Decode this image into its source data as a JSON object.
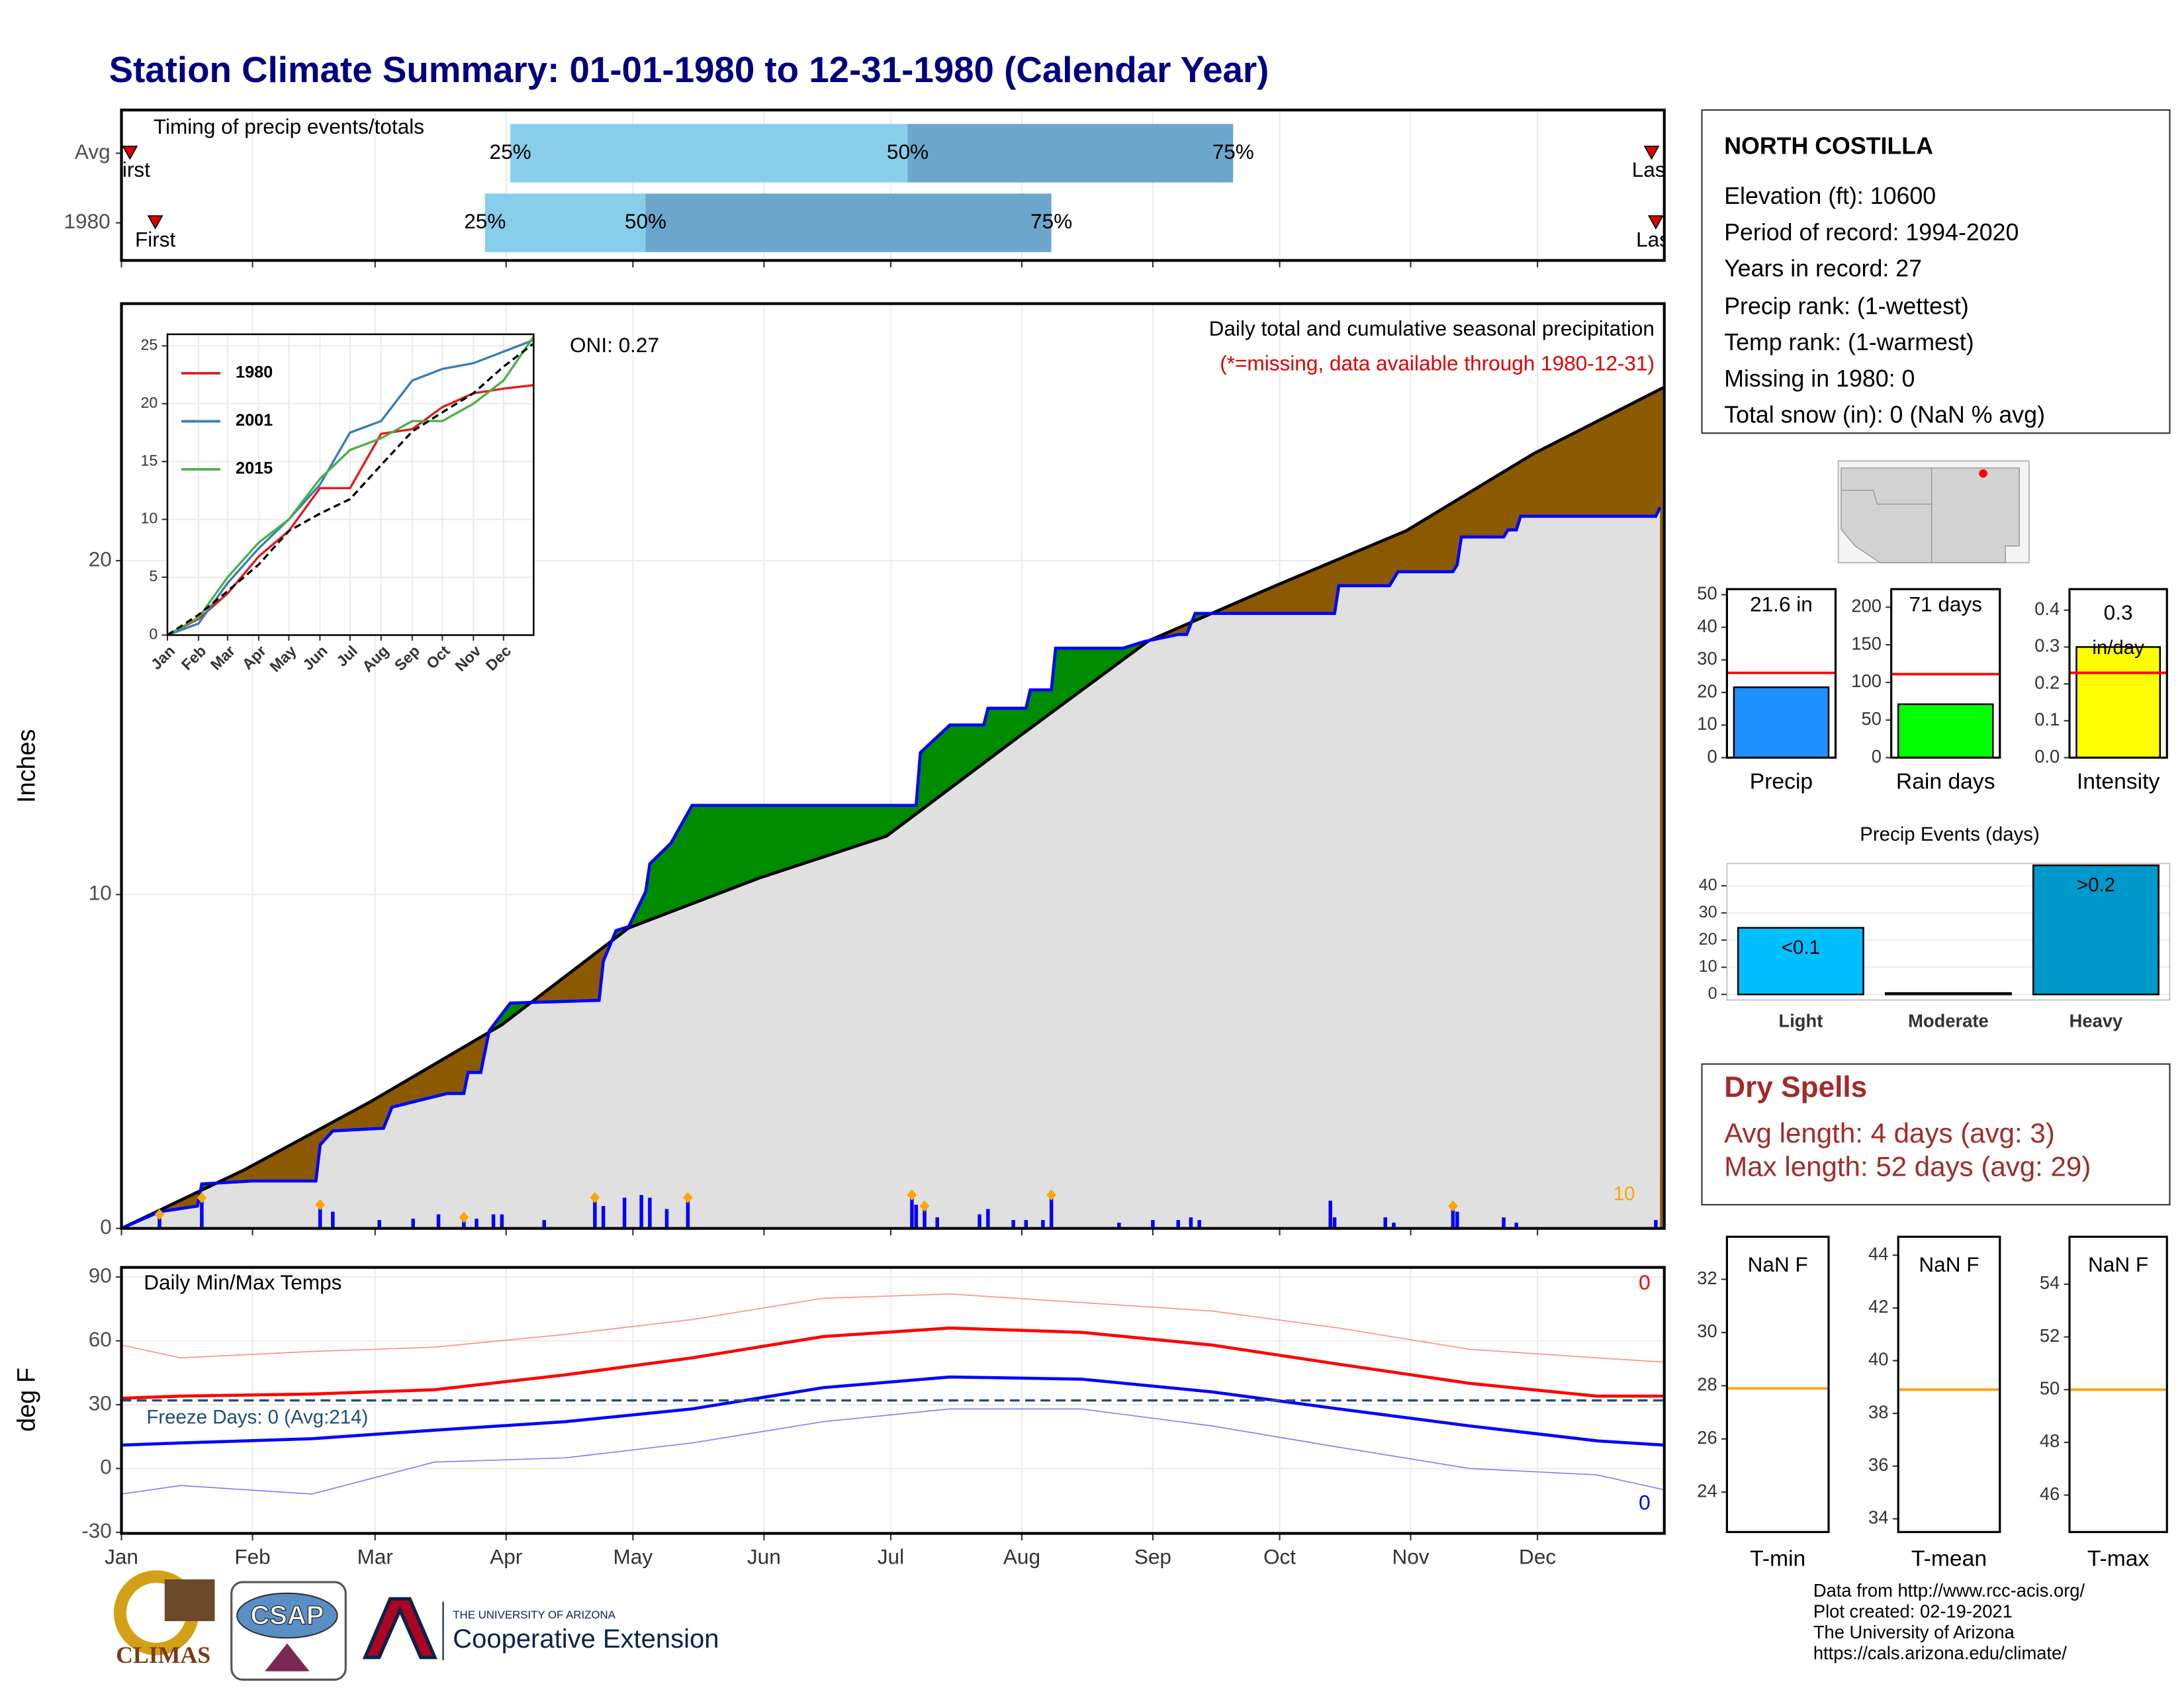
{
  "header": {
    "title": "Station Climate Summary: 01-01-1980 to 12-31-1980 (Calendar Year)"
  },
  "chart_data": [
    {
      "type": "timing",
      "title": "Timing of precip events/totals",
      "categories": [
        "Avg",
        "1980"
      ],
      "first": [
        3,
        9
      ],
      "q25": [
        93,
        87
      ],
      "q50": [
        187,
        125
      ],
      "q75": [
        264,
        221
      ],
      "last": [
        363,
        364
      ],
      "labels": {
        "first": "First",
        "last": "Last",
        "q25": "25%",
        "q50": "50%",
        "q75": "75%"
      },
      "colors": {
        "q25": "#87ceeb",
        "q50": "#6ca6cd",
        "marker": "#e00000"
      },
      "xlim": [
        1,
        366
      ],
      "xticks": [
        1,
        32,
        61,
        92,
        122,
        153,
        183,
        214,
        245,
        275,
        306,
        336
      ],
      "grid": true
    },
    {
      "type": "precip",
      "title": "Daily total and cumulative seasonal precipitation",
      "subtitle": "(*=missing, data available through 1980-12-31)",
      "annotation": "ONI: 0.27",
      "count_label": "10",
      "ylabel": "Inches",
      "xlim": [
        1,
        366
      ],
      "xticks": [
        1,
        32,
        61,
        92,
        122,
        153,
        183,
        214,
        245,
        275,
        306,
        336
      ],
      "ylim": [
        0,
        27.7
      ],
      "yticks": [
        0,
        10,
        20
      ],
      "grid": true,
      "series": [
        {
          "color": "#000000",
          "x": [
            1,
            30,
            60,
            91,
            121,
            152,
            182,
            213,
            244,
            274,
            305,
            335,
            366
          ],
          "values": [
            0,
            1.75,
            3.8,
            6.1,
            9.0,
            10.5,
            11.75,
            14.7,
            17.6,
            19.25,
            20.9,
            23.2,
            25.2
          ]
        },
        {
          "color": "#0000ff",
          "x": [
            1,
            10,
            19,
            20,
            32,
            47,
            48,
            51,
            63,
            65,
            78,
            82,
            83,
            86,
            88,
            93,
            114,
            115,
            118,
            121,
            125,
            126,
            131,
            136,
            189,
            190,
            197,
            205,
            206,
            215,
            216,
            221,
            222,
            238,
            243,
            251,
            253,
            255,
            288,
            289,
            301,
            303,
            316,
            317,
            318,
            328,
            329,
            331,
            332,
            364,
            365
          ],
          "values": [
            0,
            0.5,
            0.67,
            1.33,
            1.42,
            1.42,
            2.5,
            2.92,
            3.0,
            3.63,
            4.04,
            4.04,
            4.67,
            4.67,
            5.92,
            6.75,
            6.83,
            8.0,
            8.92,
            9.04,
            10.08,
            10.92,
            11.54,
            12.67,
            12.67,
            14.25,
            15.08,
            15.08,
            15.58,
            15.58,
            16.13,
            16.13,
            17.38,
            17.38,
            17.58,
            17.79,
            17.79,
            18.42,
            18.42,
            19.25,
            19.25,
            19.67,
            19.67,
            19.88,
            20.71,
            20.71,
            20.92,
            20.92,
            21.33,
            21.33,
            21.6
          ]
        }
      ],
      "fill_colors": {
        "deficit": "#8b5a00",
        "surplus": "#008b00",
        "base": "#e0e0e0"
      },
      "daily": {
        "color": "#0000ff",
        "flag_color": "#ffa500",
        "x": [
          10,
          20,
          48,
          51,
          62,
          70,
          76,
          82,
          85,
          89,
          91,
          101,
          113,
          115,
          120,
          124,
          126,
          130,
          135,
          188,
          189,
          191,
          194,
          204,
          206,
          212,
          215,
          219,
          221,
          237,
          245,
          251,
          254,
          256,
          287,
          288,
          300,
          302,
          316,
          317,
          328,
          331,
          364
        ],
        "values": [
          0.42,
          0.92,
          0.71,
          0.5,
          0.25,
          0.29,
          0.42,
          0.33,
          0.29,
          0.42,
          0.42,
          0.25,
          0.92,
          0.67,
          0.92,
          1.0,
          0.92,
          0.58,
          0.92,
          1.0,
          0.71,
          0.67,
          0.33,
          0.42,
          0.58,
          0.25,
          0.25,
          0.25,
          1.0,
          0.17,
          0.25,
          0.25,
          0.33,
          0.25,
          0.83,
          0.33,
          0.33,
          0.17,
          0.67,
          0.5,
          0.33,
          0.17,
          0.25
        ],
        "flagged": [
          true,
          true,
          true,
          false,
          false,
          false,
          false,
          true,
          false,
          false,
          false,
          false,
          true,
          false,
          false,
          false,
          false,
          false,
          true,
          true,
          false,
          true,
          false,
          false,
          false,
          false,
          false,
          false,
          true,
          false,
          false,
          false,
          false,
          false,
          false,
          false,
          false,
          false,
          true,
          false,
          false,
          false,
          false
        ]
      }
    },
    {
      "type": "line",
      "xlim": [
        1,
        366
      ],
      "xticks": [
        {
          "value": 1,
          "label": "Jan"
        },
        {
          "value": 32,
          "label": "Feb"
        },
        {
          "value": 61,
          "label": "Mar"
        },
        {
          "value": 92,
          "label": "Apr"
        },
        {
          "value": 122,
          "label": "May"
        },
        {
          "value": 153,
          "label": "Jun"
        },
        {
          "value": 183,
          "label": "Jul"
        },
        {
          "value": 214,
          "label": "Aug"
        },
        {
          "value": 245,
          "label": "Sep"
        },
        {
          "value": 275,
          "label": "Oct"
        },
        {
          "value": 306,
          "label": "Nov"
        },
        {
          "value": 336,
          "label": "Dec"
        }
      ],
      "ylim": [
        0,
        26
      ],
      "yticks": [
        0,
        5,
        10,
        15,
        20,
        25
      ],
      "grid": true,
      "x": [
        1,
        32,
        61,
        92,
        122,
        153,
        183,
        214,
        245,
        275,
        306,
        336,
        366
      ],
      "series": [
        {
          "name": "1980",
          "color": "#e41a1c",
          "values": [
            0,
            1.4,
            3.6,
            6.8,
            9.0,
            12.7,
            12.7,
            17.4,
            17.8,
            19.7,
            20.9,
            21.3,
            21.6
          ]
        },
        {
          "name": "2001",
          "color": "#377eb8",
          "values": [
            0,
            1.0,
            4.5,
            7.5,
            10,
            13,
            17.5,
            18.5,
            22,
            23,
            23.5,
            24.5,
            25.5
          ]
        },
        {
          "name": "2015",
          "color": "#4daf4a",
          "values": [
            0,
            1.5,
            5,
            8,
            10,
            13.5,
            16,
            17,
            18.5,
            18.5,
            20,
            22,
            25.8
          ]
        },
        {
          "color": "#000000",
          "dash": true,
          "values": [
            0,
            1.75,
            3.8,
            6.1,
            9.0,
            10.5,
            11.75,
            14.7,
            17.6,
            19.25,
            20.9,
            23.2,
            25.2
          ]
        }
      ]
    },
    {
      "type": "temps",
      "title": "Daily Min/Max Temps",
      "ylabel": "deg F",
      "xlim": [
        1,
        366
      ],
      "xticks": [
        {
          "value": 1,
          "label": "Jan"
        },
        {
          "value": 32,
          "label": "Feb"
        },
        {
          "value": 61,
          "label": "Mar"
        },
        {
          "value": 92,
          "label": "Apr"
        },
        {
          "value": 122,
          "label": "May"
        },
        {
          "value": 153,
          "label": "Jun"
        },
        {
          "value": 183,
          "label": "Jul"
        },
        {
          "value": 214,
          "label": "Aug"
        },
        {
          "value": 245,
          "label": "Sep"
        },
        {
          "value": 275,
          "label": "Oct"
        },
        {
          "value": 306,
          "label": "Nov"
        },
        {
          "value": 336,
          "label": "Dec"
        }
      ],
      "ylim": [
        -30.5,
        94.5
      ],
      "yticks": [
        -30,
        0,
        30,
        60,
        90
      ],
      "grid": true,
      "x": [
        1,
        15,
        46,
        75,
        106,
        136,
        167,
        197,
        228,
        259,
        289,
        320,
        350,
        366
      ],
      "series": [
        {
          "color": "#ff9090",
          "width": 0.8,
          "values": [
            58,
            52,
            55,
            57,
            63,
            70,
            80,
            82,
            78,
            74,
            66,
            56,
            52,
            50
          ]
        },
        {
          "color": "#ff0000",
          "width": 2.2,
          "values": [
            33,
            34,
            35,
            37,
            44,
            52,
            62,
            66,
            64,
            58,
            49,
            40,
            34,
            34
          ]
        },
        {
          "color": "#0000ff",
          "width": 2.2,
          "values": [
            11,
            12,
            14,
            18,
            22,
            28,
            38,
            43,
            42,
            36,
            28,
            20,
            13,
            11
          ]
        },
        {
          "color": "#8080ff",
          "width": 0.8,
          "values": [
            -12,
            -8,
            -12,
            3,
            5,
            12,
            22,
            28,
            28,
            20,
            10,
            0,
            -3,
            -10
          ]
        }
      ],
      "freeze_line": 32,
      "freeze_label": "Freeze Days: 0 (Avg:214)",
      "freeze_color": "#1f4e79",
      "max_label": "0",
      "min_label": "0"
    },
    {
      "type": "summary_bar",
      "label": "Precip",
      "values": [
        21.6
      ],
      "value_labels": [
        "21.6 in"
      ],
      "avg": 26,
      "color": "#1e90ff",
      "ylim": [
        0,
        51.7
      ],
      "yticks": [
        0,
        10,
        20,
        30,
        40,
        50
      ]
    },
    {
      "type": "summary_bar",
      "label": "Rain days",
      "values": [
        71
      ],
      "value_labels": [
        "71 days"
      ],
      "avg": 111,
      "color": "#00ff00",
      "ylim": [
        0,
        224
      ],
      "yticks": [
        0,
        50,
        100,
        150,
        200
      ]
    },
    {
      "type": "summary_bar",
      "label": "Intensity",
      "values": [
        0.3
      ],
      "value_labels": [
        "0.3"
      ],
      "unit": "in/day",
      "avg": 0.23,
      "color": "#ffff00",
      "ylim": [
        0,
        0.457
      ],
      "yticks": [
        {
          "value": 0,
          "label": "0.0"
        },
        0.1,
        0.2,
        0.3,
        0.4
      ]
    },
    {
      "type": "bar",
      "title": "Precip Events (days)",
      "categories": [
        "Light",
        "Moderate",
        "Heavy"
      ],
      "values": [
        24,
        0,
        47
      ],
      "bar_labels": [
        "<0.1",
        null,
        ">0.2"
      ],
      "colors": [
        "#00bfff",
        "#1e90ff",
        "#0099cc"
      ],
      "ylim": [
        0,
        48.2
      ],
      "yticks": [
        0,
        10,
        20,
        30,
        40
      ],
      "grid": true
    },
    {
      "type": "temp_box",
      "label": "T-min",
      "value_label": "NaN F",
      "line": 27.9,
      "line_color": "#ffa500",
      "ylim": [
        22.5,
        33.6
      ],
      "yticks": [
        24,
        26,
        28,
        30,
        32
      ]
    },
    {
      "type": "temp_box",
      "label": "T-mean",
      "value_label": "NaN F",
      "line": 38.9,
      "line_color": "#ffa500",
      "ylim": [
        33.5,
        44.7
      ],
      "yticks": [
        34,
        36,
        38,
        40,
        42,
        44
      ]
    },
    {
      "type": "temp_box",
      "label": "T-max",
      "value_label": "NaN F",
      "line": 50,
      "line_color": "#ffa500",
      "ylim": [
        44.6,
        55.8
      ],
      "yticks": [
        46,
        48,
        50,
        52,
        54
      ]
    }
  ],
  "station": {
    "name": "NORTH COSTILLA",
    "lines": [
      "Elevation (ft): 10600",
      "Period of record: 1994-2020",
      "Years in record: 27",
      "Precip rank:  (1-wettest)",
      "Temp rank:  (1-warmest)",
      "Missing in 1980: 0",
      "Total snow (in): 0 (NaN % avg)"
    ]
  },
  "dry_spells": {
    "title": "Dry Spells",
    "lines": [
      "Avg length: 4 days (avg: 3)",
      "Max length: 52 days (avg: 29)"
    ]
  },
  "logos": {
    "climas": "CLIMAS",
    "csap": "CSAP",
    "university": "THE UNIVERSITY OF ARIZONA",
    "extension": "Cooperative Extension"
  },
  "credits": [
    "Data from http://www.rcc-acis.org/",
    "Plot created: 02-19-2021",
    "The University of Arizona",
    "https://cals.arizona.edu/climate/"
  ]
}
